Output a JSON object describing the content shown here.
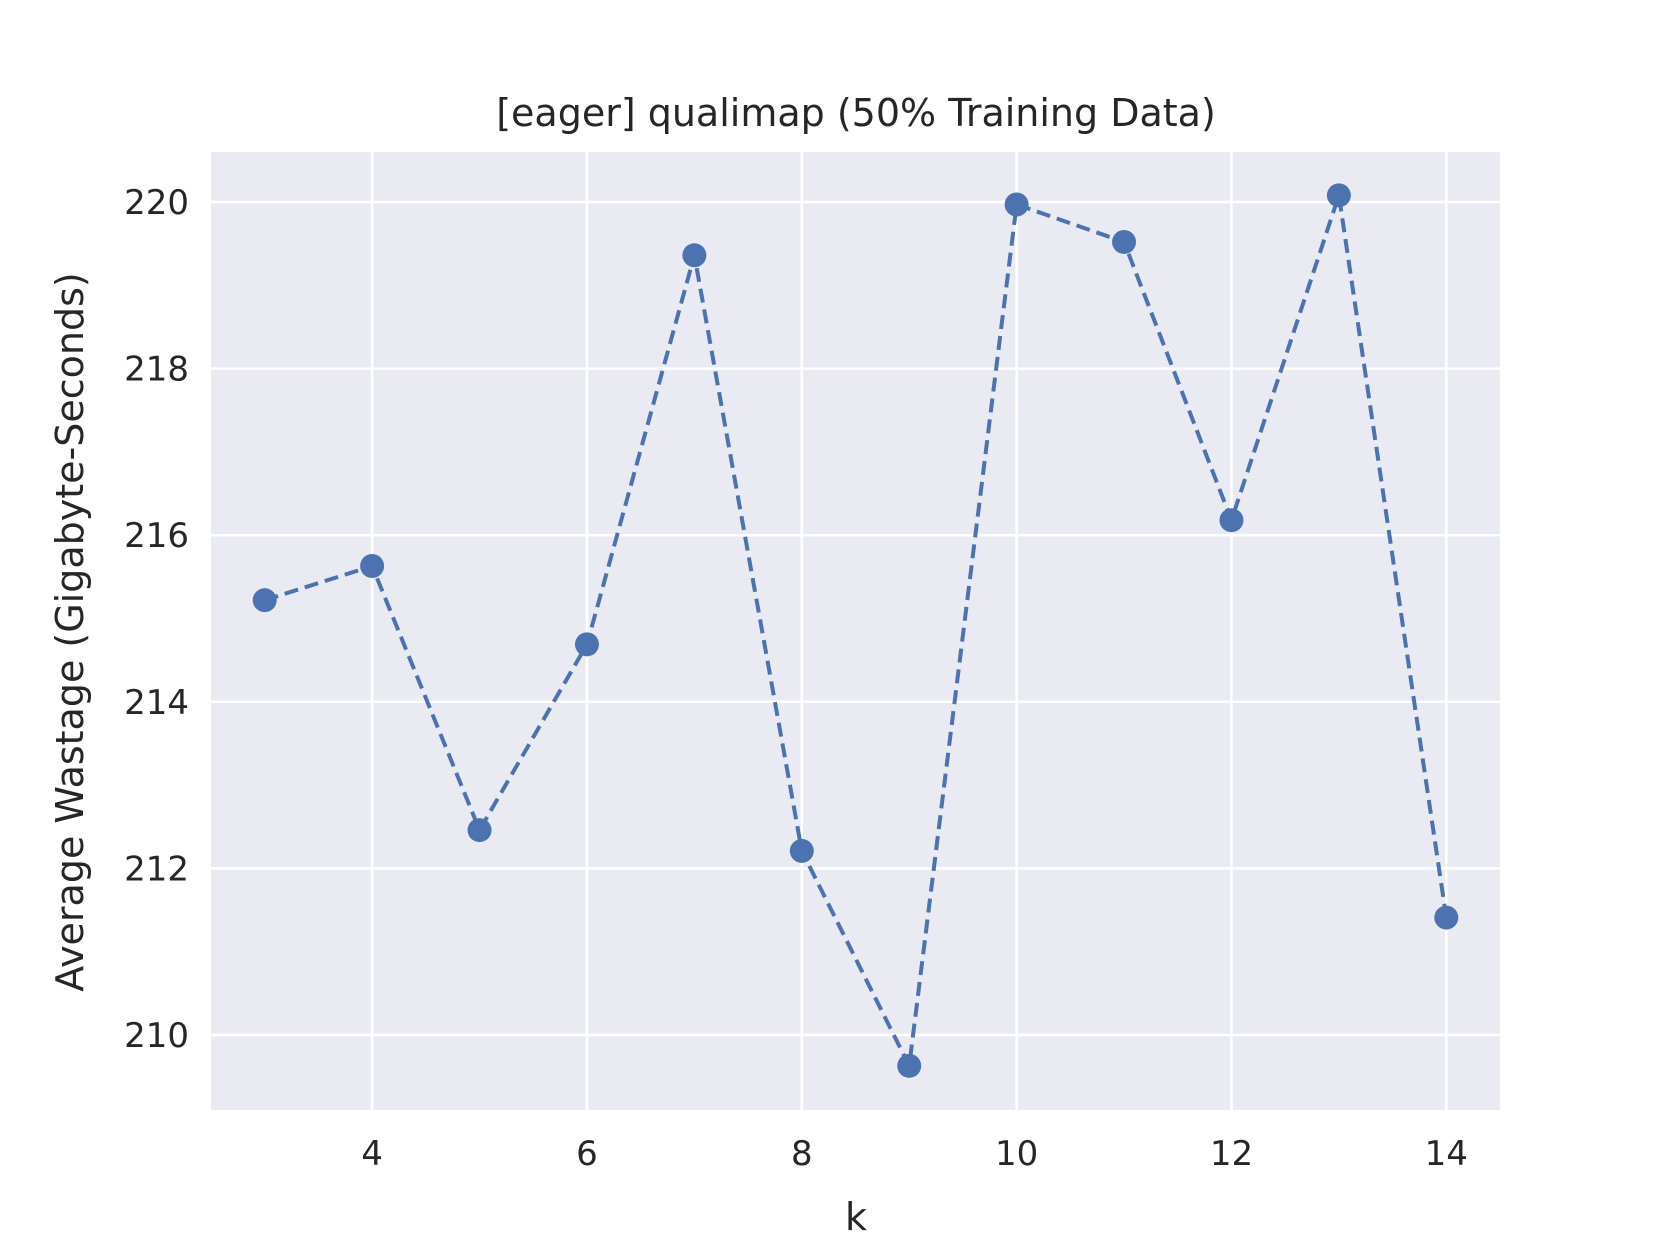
{
  "chart_data": {
    "type": "line",
    "title": "[eager] qualimap (50% Training Data)",
    "xlabel": "k",
    "ylabel": "Average Wastage (Gigabyte-Seconds)",
    "xlim": [
      2.5,
      14.5
    ],
    "ylim": [
      209.1,
      220.6
    ],
    "x_ticks": [
      4,
      6,
      8,
      10,
      12,
      14
    ],
    "y_ticks": [
      210,
      212,
      214,
      216,
      218,
      220
    ],
    "grid": true,
    "series": [
      {
        "x": [
          3,
          4,
          5,
          6,
          7,
          8,
          9,
          10,
          11,
          12,
          13,
          14
        ],
        "values": [
          215.22,
          215.63,
          212.46,
          214.69,
          219.36,
          212.21,
          209.63,
          219.97,
          219.52,
          216.18,
          220.08,
          211.41
        ],
        "color": "#4c72b0",
        "line_style": "dashed",
        "marker": "circle"
      }
    ],
    "colors": {
      "plot_background": "#eaeaf2",
      "grid": "#ffffff",
      "series": "#4c72b0"
    }
  }
}
